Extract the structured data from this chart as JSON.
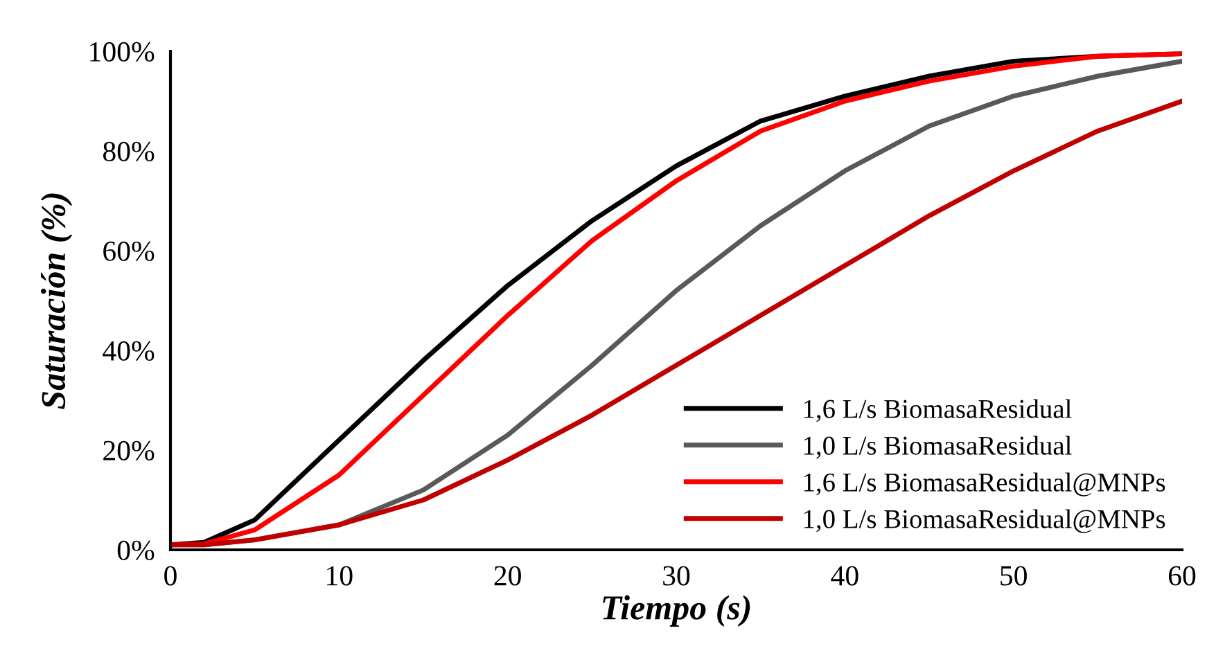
{
  "chart_data": {
    "type": "line",
    "xlabel": "Tiempo (s)",
    "ylabel": "Saturación (%)",
    "x": [
      0,
      2,
      5,
      10,
      15,
      20,
      25,
      30,
      35,
      40,
      45,
      50,
      55,
      60
    ],
    "series": [
      {
        "name": "1,6 L/s BiomasaResidual",
        "color": "#000000",
        "values": [
          1,
          1.5,
          6,
          22,
          38,
          53,
          66,
          77,
          86,
          91,
          95,
          98,
          99,
          99.5
        ]
      },
      {
        "name": "1,0 L/s BiomasaResidual",
        "color": "#595959",
        "values": [
          1,
          1,
          2,
          5,
          12,
          23,
          37,
          52,
          65,
          76,
          85,
          91,
          95,
          98
        ]
      },
      {
        "name": "1,6 L/s BiomasaResidual@MNPs",
        "color": "#ff0000",
        "values": [
          1,
          1.2,
          4,
          15,
          31,
          47,
          62,
          74,
          84,
          90,
          94,
          97,
          99,
          99.5
        ]
      },
      {
        "name": "1,0 L/s BiomasaResidual@MNPs",
        "color": "#c00000",
        "values": [
          1,
          1,
          2,
          5,
          10,
          18,
          27,
          37,
          47,
          57,
          67,
          76,
          84,
          90
        ]
      }
    ],
    "xlim": [
      0,
      60
    ],
    "xticks": [
      0,
      10,
      20,
      30,
      40,
      50,
      60
    ],
    "ylim": [
      0,
      100
    ],
    "yticks": [
      {
        "value": 0,
        "label": "0%"
      },
      {
        "value": 20,
        "label": "20%"
      },
      {
        "value": 40,
        "label": "40%"
      },
      {
        "value": 60,
        "label": "60%"
      },
      {
        "value": 80,
        "label": "80%"
      },
      {
        "value": 100,
        "label": "100%"
      }
    ],
    "grid": false,
    "legend": "bottom right",
    "line_style": "solid"
  }
}
